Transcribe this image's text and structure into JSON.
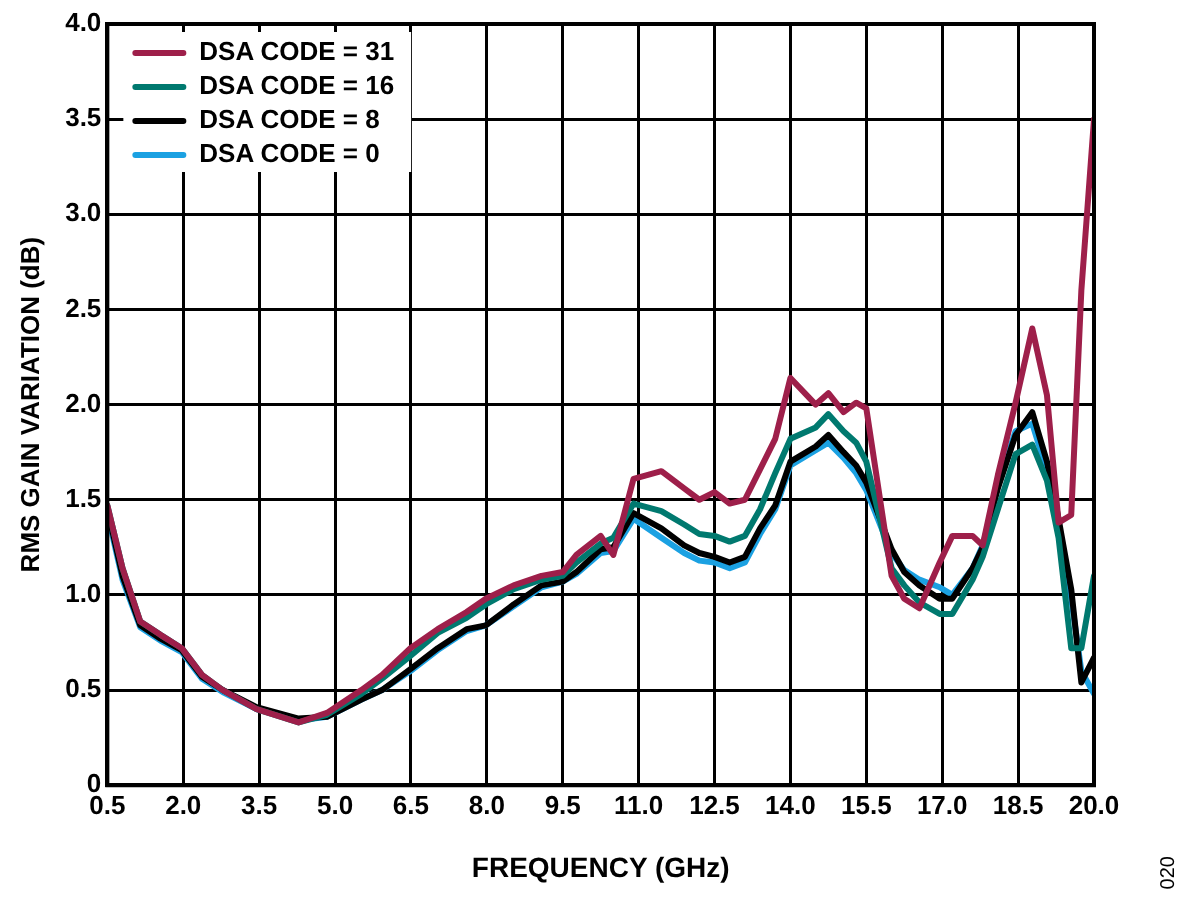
{
  "chart_data": {
    "type": "line",
    "xlabel": "FREQUENCY (GHz)",
    "ylabel": "RMS GAIN VARIATION (dB)",
    "x": [
      0.5,
      0.8,
      1.15,
      1.55,
      1.97,
      2.37,
      2.78,
      3.45,
      4.28,
      4.84,
      5.52,
      5.93,
      6.49,
      7.03,
      7.6,
      7.98,
      8.53,
      9.08,
      9.5,
      9.77,
      10.25,
      10.5,
      10.9,
      11.45,
      11.9,
      12.2,
      12.5,
      12.8,
      13.1,
      13.4,
      13.7,
      14.0,
      14.5,
      14.75,
      15.05,
      15.3,
      15.5,
      16.0,
      16.25,
      16.55,
      16.95,
      17.2,
      17.6,
      17.8,
      18.1,
      18.45,
      18.78,
      19.07,
      19.3,
      19.55,
      19.75,
      20.0
    ],
    "series": [
      {
        "name": "DSA CODE = 31",
        "color": "#9e1f4a",
        "values": [
          1.47,
          1.14,
          0.86,
          0.79,
          0.72,
          0.58,
          0.5,
          0.4,
          0.33,
          0.38,
          0.5,
          0.58,
          0.72,
          0.82,
          0.91,
          0.98,
          1.05,
          1.1,
          1.12,
          1.21,
          1.31,
          1.21,
          1.61,
          1.65,
          1.56,
          1.5,
          1.54,
          1.48,
          1.5,
          1.66,
          1.82,
          2.14,
          2.0,
          2.06,
          1.96,
          2.01,
          1.98,
          1.1,
          0.98,
          0.93,
          1.17,
          1.31,
          1.31,
          1.26,
          1.63,
          2.01,
          2.4,
          2.05,
          1.38,
          1.42,
          2.6,
          3.5
        ]
      },
      {
        "name": "DSA CODE = 16",
        "color": "#00796f",
        "values": [
          1.47,
          1.14,
          0.86,
          0.79,
          0.72,
          0.58,
          0.5,
          0.4,
          0.33,
          0.37,
          0.48,
          0.56,
          0.68,
          0.8,
          0.88,
          0.95,
          1.03,
          1.08,
          1.1,
          1.17,
          1.27,
          1.3,
          1.48,
          1.44,
          1.37,
          1.32,
          1.31,
          1.28,
          1.31,
          1.45,
          1.64,
          1.82,
          1.88,
          1.95,
          1.86,
          1.8,
          1.7,
          1.14,
          1.05,
          0.96,
          0.9,
          0.9,
          1.08,
          1.2,
          1.45,
          1.74,
          1.79,
          1.6,
          1.3,
          0.72,
          0.72,
          1.1
        ]
      },
      {
        "name": "DSA CODE = 8",
        "color": "#000000",
        "values": [
          1.45,
          1.1,
          0.84,
          0.77,
          0.71,
          0.57,
          0.5,
          0.41,
          0.35,
          0.36,
          0.45,
          0.5,
          0.61,
          0.72,
          0.82,
          0.84,
          0.95,
          1.05,
          1.07,
          1.12,
          1.24,
          1.25,
          1.43,
          1.35,
          1.26,
          1.22,
          1.2,
          1.17,
          1.2,
          1.35,
          1.47,
          1.7,
          1.78,
          1.84,
          1.75,
          1.68,
          1.59,
          1.24,
          1.12,
          1.05,
          0.98,
          0.98,
          1.14,
          1.25,
          1.56,
          1.84,
          1.96,
          1.7,
          1.4,
          1.03,
          0.54,
          0.67
        ]
      },
      {
        "name": "DSA CODE = 0",
        "color": "#1ba1e2",
        "values": [
          1.43,
          1.08,
          0.83,
          0.76,
          0.7,
          0.56,
          0.49,
          0.4,
          0.34,
          0.36,
          0.45,
          0.5,
          0.6,
          0.71,
          0.81,
          0.84,
          0.94,
          1.04,
          1.07,
          1.11,
          1.22,
          1.23,
          1.4,
          1.3,
          1.22,
          1.18,
          1.17,
          1.14,
          1.17,
          1.32,
          1.45,
          1.68,
          1.76,
          1.8,
          1.72,
          1.64,
          1.55,
          1.22,
          1.13,
          1.08,
          1.04,
          1.0,
          1.14,
          1.26,
          1.57,
          1.86,
          1.9,
          1.65,
          1.35,
          0.98,
          0.6,
          0.48
        ]
      }
    ],
    "xlim": [
      0.5,
      20
    ],
    "xticks": [
      0.5,
      {
        "value": 2,
        "label": "2.0"
      },
      3.5,
      {
        "value": 5,
        "label": "5.0"
      },
      6.5,
      {
        "value": 8,
        "label": "8.0"
      },
      9.5,
      {
        "value": 11,
        "label": "11.0"
      },
      12.5,
      {
        "value": 14,
        "label": "14.0"
      },
      15.5,
      {
        "value": 17,
        "label": "17.0"
      },
      18.5,
      {
        "value": 20,
        "label": "20.0"
      }
    ],
    "ylim": [
      0,
      4
    ],
    "yticks": [
      0,
      0.5,
      {
        "value": 1,
        "label": "1.0"
      },
      1.5,
      {
        "value": 2,
        "label": "2.0"
      },
      2.5,
      {
        "value": 3,
        "label": "3.0"
      },
      3.5,
      {
        "value": 4,
        "label": "4.0"
      }
    ],
    "grid": true,
    "legend": "top left",
    "marker": "none",
    "line_style": "solid",
    "annotations": [
      "020"
    ]
  }
}
